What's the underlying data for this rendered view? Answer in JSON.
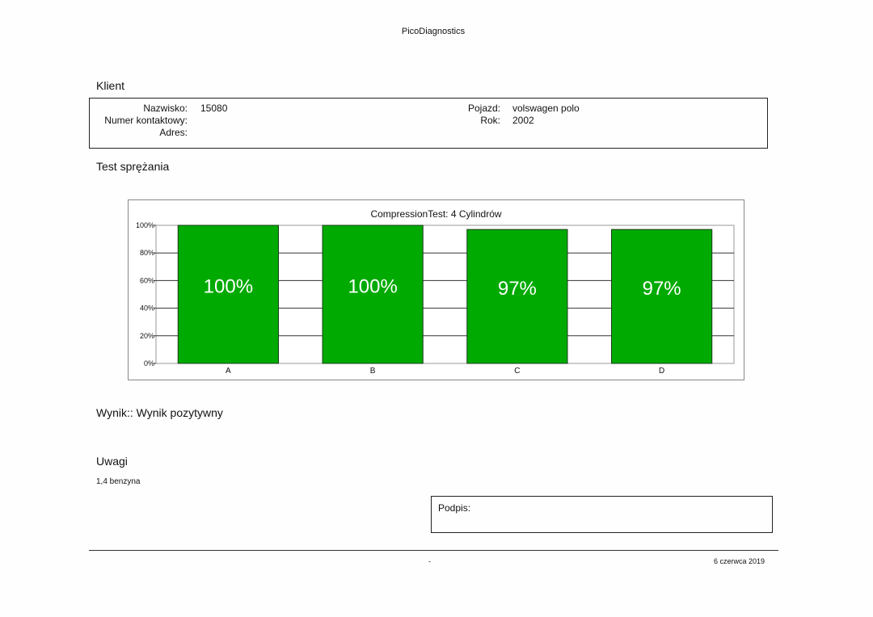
{
  "header": {
    "app_title": "PicoDiagnostics"
  },
  "client": {
    "section_title": "Klient",
    "name_label": "Nazwisko:",
    "name_value": "15080",
    "phone_label": "Numer kontaktowy:",
    "address_label": "Adres:",
    "vehicle_label": "Pojazd:",
    "vehicle_value": "volswagen polo",
    "year_label": "Rok:",
    "year_value": "2002"
  },
  "test": {
    "section_title": "Test sprężania"
  },
  "chart_data": {
    "type": "bar",
    "title": "CompressionTest: 4 Cylindrów",
    "categories": [
      "A",
      "B",
      "C",
      "D"
    ],
    "values": [
      100,
      100,
      97,
      97
    ],
    "value_labels": [
      "100%",
      "100%",
      "97%",
      "97%"
    ],
    "yticks": [
      "0%",
      "20%",
      "40%",
      "60%",
      "80%",
      "100%"
    ],
    "ylim": [
      0,
      100
    ],
    "grid": true,
    "bar_color": "#00aa00",
    "label_color": "#ffffff"
  },
  "result": {
    "text": "Wynik:: Wynik pozytywny"
  },
  "notes": {
    "section_title": "Uwagi",
    "text": "1,4 benzyna"
  },
  "signature": {
    "label": "Podpis:"
  },
  "footer": {
    "center": "-",
    "date": "6 czerwca 2019"
  }
}
